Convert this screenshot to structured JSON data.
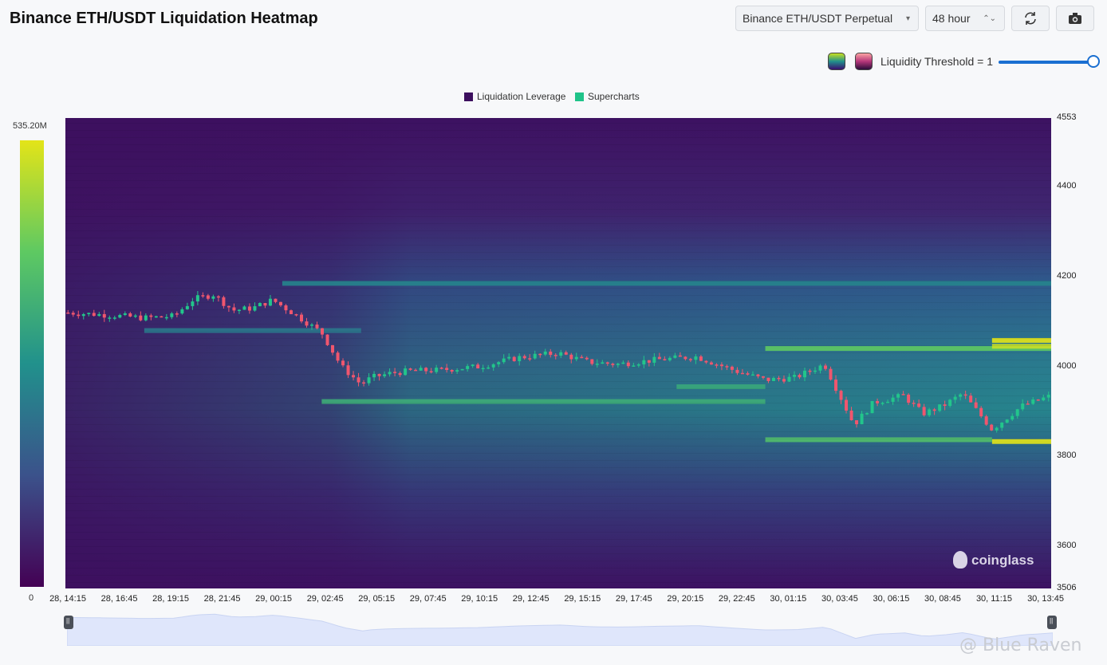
{
  "header": {
    "title": "Binance ETH/USDT Liquidation Heatmap",
    "pair_select": "Binance ETH/USDT Perpetual",
    "range_select": "48 hour",
    "refresh_icon": "refresh-icon",
    "camera_icon": "camera-icon"
  },
  "threshold": {
    "label": "Liquidity Threshold = 1",
    "value": 1,
    "slider_fraction": 1.0
  },
  "colors": {
    "viridis_low": "#440154",
    "viridis_high": "#e3e418",
    "candle_up": "#22c58b",
    "candle_down": "#f0566e",
    "slider": "#1a6fd1"
  },
  "watermark": {
    "brand": "coinglass",
    "user": "@ Blue Raven"
  },
  "chart_data": {
    "type": "heatmap",
    "title": "",
    "legend": [
      {
        "name": "Liquidation Leverage",
        "color": "#3c0f5e"
      },
      {
        "name": "Supercharts",
        "color": "#1fc389"
      }
    ],
    "colorbar": {
      "max_label": "535.20M",
      "min_label": "0"
    },
    "y_axis": {
      "ticks": [
        4553,
        4400,
        4200,
        4000,
        3800,
        3600,
        3506
      ],
      "range": [
        3506,
        4553
      ]
    },
    "x_axis": {
      "ticks": [
        "28, 14:15",
        "28, 16:45",
        "28, 19:15",
        "28, 21:45",
        "29, 00:15",
        "29, 02:45",
        "29, 05:15",
        "29, 07:45",
        "29, 10:15",
        "29, 12:45",
        "29, 15:15",
        "29, 17:45",
        "29, 20:15",
        "29, 22:45",
        "30, 01:15",
        "30, 03:45",
        "30, 06:15",
        "30, 08:45",
        "30, 11:15",
        "30, 13:45"
      ]
    },
    "price_series": {
      "x_fraction": [
        0.0,
        0.04,
        0.08,
        0.11,
        0.13,
        0.15,
        0.17,
        0.19,
        0.21,
        0.23,
        0.26,
        0.28,
        0.3,
        0.31,
        0.33,
        0.35,
        0.38,
        0.42,
        0.46,
        0.5,
        0.53,
        0.56,
        0.6,
        0.64,
        0.68,
        0.71,
        0.74,
        0.77,
        0.8,
        0.82,
        0.85,
        0.87,
        0.89,
        0.91,
        0.94,
        0.97,
        1.0
      ],
      "values": [
        4120,
        4115,
        4108,
        4112,
        4150,
        4160,
        4125,
        4130,
        4148,
        4120,
        4075,
        4000,
        3960,
        3975,
        3985,
        3990,
        3992,
        4000,
        4020,
        4030,
        4010,
        4005,
        4015,
        4022,
        3990,
        3970,
        3975,
        4005,
        3870,
        3920,
        3935,
        3895,
        3912,
        3940,
        3860,
        3912,
        3935
      ]
    },
    "bands": [
      {
        "price": 4040,
        "from": 0.71,
        "to": 1.0,
        "intensity": 0.75
      },
      {
        "price": 4058,
        "from": 0.94,
        "to": 1.0,
        "intensity": 1.0
      },
      {
        "price": 4045,
        "from": 0.94,
        "to": 1.0,
        "intensity": 0.95
      },
      {
        "price": 3833,
        "from": 0.94,
        "to": 1.0,
        "intensity": 1.0
      },
      {
        "price": 3837,
        "from": 0.71,
        "to": 0.94,
        "intensity": 0.7
      },
      {
        "price": 3922,
        "from": 0.26,
        "to": 0.71,
        "intensity": 0.62
      },
      {
        "price": 3955,
        "from": 0.62,
        "to": 0.71,
        "intensity": 0.6
      },
      {
        "price": 4185,
        "from": 0.22,
        "to": 1.0,
        "intensity": 0.45
      },
      {
        "price": 4080,
        "from": 0.08,
        "to": 0.3,
        "intensity": 0.4
      }
    ]
  }
}
